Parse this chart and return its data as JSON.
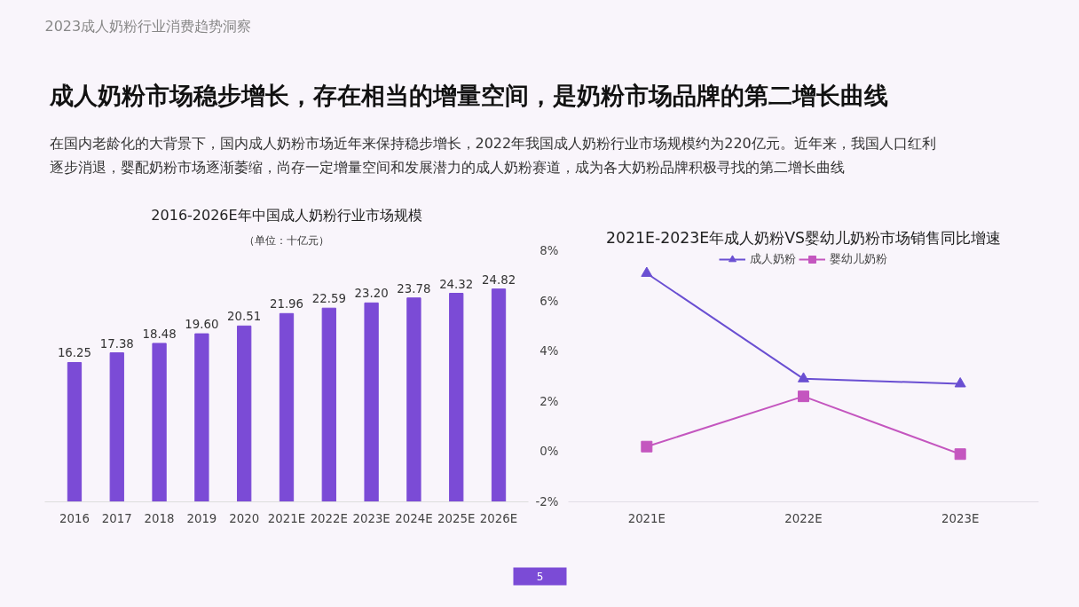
{
  "chart_data": [
    {
      "type": "other",
      "title": "成人奶粉市场稳步增长，存在相当的增量空间，是奶粉市场品牌的第二增长曲线",
      "subtitle": "在国内老龄化的大背景下，国内成人奶粉市场近年来保持稳步增长，2022年我国成人奶粉行业市场规模约为220亿元。近年来，我国人口红利逐步消退，婴配奶粉市场逐渐萎缩，尚存一定增量空间和发展潜力的成人奶粉赛道，成为各大奶粉品牌积极寻找的第二增长曲线",
      "annotations": [
        "2023成人奶粉行业消费趋势洞察",
        "5"
      ]
    },
    {
      "type": "bar",
      "title": "2016-2026E年中国成人奶粉行业市场规模",
      "subtitle": "（单位：十亿元）",
      "categories": [
        "2016",
        "2017",
        "2018",
        "2019",
        "2020",
        "2021E",
        "2022E",
        "2023E",
        "2024E",
        "2025E",
        "2026E"
      ],
      "values": [
        16.25,
        17.38,
        18.48,
        19.6,
        20.51,
        21.96,
        22.59,
        23.2,
        23.78,
        24.32,
        24.82
      ],
      "value_labels": [
        "16.25",
        "17.38",
        "18.48",
        "19.60",
        "20.51",
        "21.96",
        "22.59",
        "23.20",
        "23.78",
        "24.32",
        "24.82"
      ],
      "color": "#7b4bd6",
      "tick_labels": "x",
      "grid": false
    },
    {
      "type": "line",
      "title": "2021E-2023E年成人奶粉VS婴幼儿奶粉市场销售同比增速",
      "categories": [
        "2021E",
        "2022E",
        "2023E"
      ],
      "series": [
        {
          "name": "成人奶粉",
          "color": "#6a4fd2",
          "values": [
            7.1,
            2.9,
            2.7
          ],
          "marker": "triangle"
        },
        {
          "name": "婴幼儿奶粉",
          "color": "#c456bf",
          "values": [
            0.2,
            2.2,
            -0.1
          ],
          "marker": "square"
        }
      ],
      "ylim": [
        -2,
        8
      ],
      "yticks": [
        {
          "value": -2,
          "label": "-2%"
        },
        {
          "value": 0,
          "label": "0%"
        },
        {
          "value": 2,
          "label": "2%"
        },
        {
          "value": 4,
          "label": "4%"
        },
        {
          "value": 6,
          "label": "6%"
        },
        {
          "value": 8,
          "label": "8%"
        }
      ],
      "grid": false,
      "legend": "top",
      "line_style": "solid"
    }
  ]
}
